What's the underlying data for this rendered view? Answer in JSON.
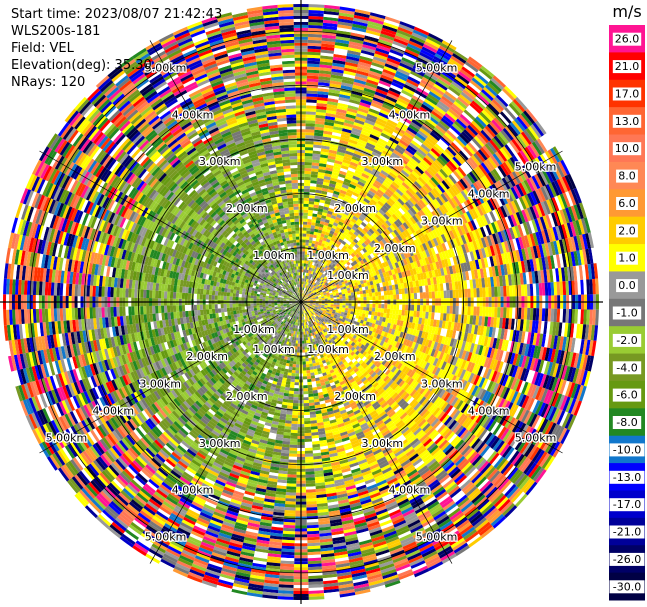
{
  "header": {
    "lines": [
      "Start time: 2023/08/07 21:42:43",
      "WLS200s-181",
      "Field: VEL",
      "Elevation(deg): 35.30",
      "NRays: 120"
    ]
  },
  "chart_data": {
    "type": "heatmap",
    "projection": "polar-ppi",
    "field": "VEL",
    "unit": "m/s",
    "n_rays": 120,
    "range_rings_km": [
      1.0,
      2.0,
      3.0,
      4.0,
      5.0
    ],
    "ring_labels": [
      "1.00km",
      "2.00km",
      "3.00km",
      "4.00km",
      "5.00km"
    ],
    "max_range_km": 5.5,
    "colorbar": {
      "ticks": [
        "26.0",
        "21.0",
        "17.0",
        "13.0",
        "10.0",
        "8.0",
        "6.0",
        "2.0",
        "1.0",
        "0.0",
        "-1.0",
        "-2.0",
        "-4.0",
        "-6.0",
        "-8.0",
        "-10.0",
        "-13.0",
        "-17.0",
        "-21.0",
        "-26.0",
        "-30.0"
      ],
      "colors": [
        "#ff1493",
        "#ff0000",
        "#ff3300",
        "#ff6633",
        "#ff7755",
        "#ff8855",
        "#ff9933",
        "#ffcc00",
        "#ffff00",
        "#999999",
        "#777777",
        "#99cc33",
        "#779922",
        "#669911",
        "#228822",
        "#1177cc",
        "#0000ff",
        "#0000cc",
        "#000099",
        "#000066",
        "#000044"
      ]
    },
    "pattern": {
      "core_range_km": 3.2,
      "noise_from_km": 4.0,
      "positive_sector": "east (yellow, +1 to +6 m/s)",
      "negative_sector": "west (green, -1 to -8 m/s)"
    }
  }
}
